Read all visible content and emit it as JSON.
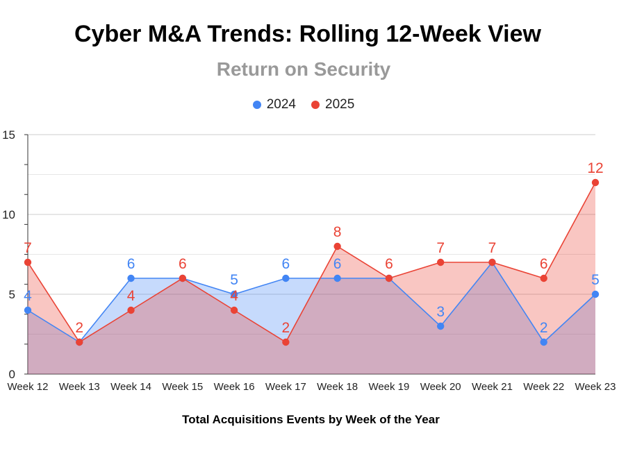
{
  "chart_data": {
    "type": "area",
    "title": "Cyber M&A Trends: Rolling 12-Week View",
    "subtitle": "Return on Security",
    "xlabel": "Total Acquisitions Events by Week of the Year",
    "ylabel": "",
    "ylim": [
      0,
      15
    ],
    "yticks": [
      0,
      5,
      10,
      15
    ],
    "grid": true,
    "legend_position": "top",
    "categories": [
      "Week 12",
      "Week 13",
      "Week 14",
      "Week 15",
      "Week 16",
      "Week 17",
      "Week 18",
      "Week 19",
      "Week 20",
      "Week 21",
      "Week 22",
      "Week 23"
    ],
    "series": [
      {
        "name": "2024",
        "color": "#4285F4",
        "values": [
          4,
          2,
          6,
          6,
          5,
          6,
          6,
          6,
          3,
          7,
          2,
          5
        ]
      },
      {
        "name": "2025",
        "color": "#EA4335",
        "values": [
          7,
          2,
          4,
          6,
          4,
          2,
          8,
          6,
          7,
          7,
          6,
          12
        ]
      }
    ],
    "data_labels": {
      "2024": [
        "4",
        "",
        "6",
        "",
        "5",
        "6",
        "6",
        "",
        "3",
        "",
        "2",
        "5"
      ],
      "2025": [
        "7",
        "2",
        "4",
        "6",
        "4",
        "2",
        "8",
        "6",
        "7",
        "7",
        "6",
        "12"
      ]
    }
  }
}
